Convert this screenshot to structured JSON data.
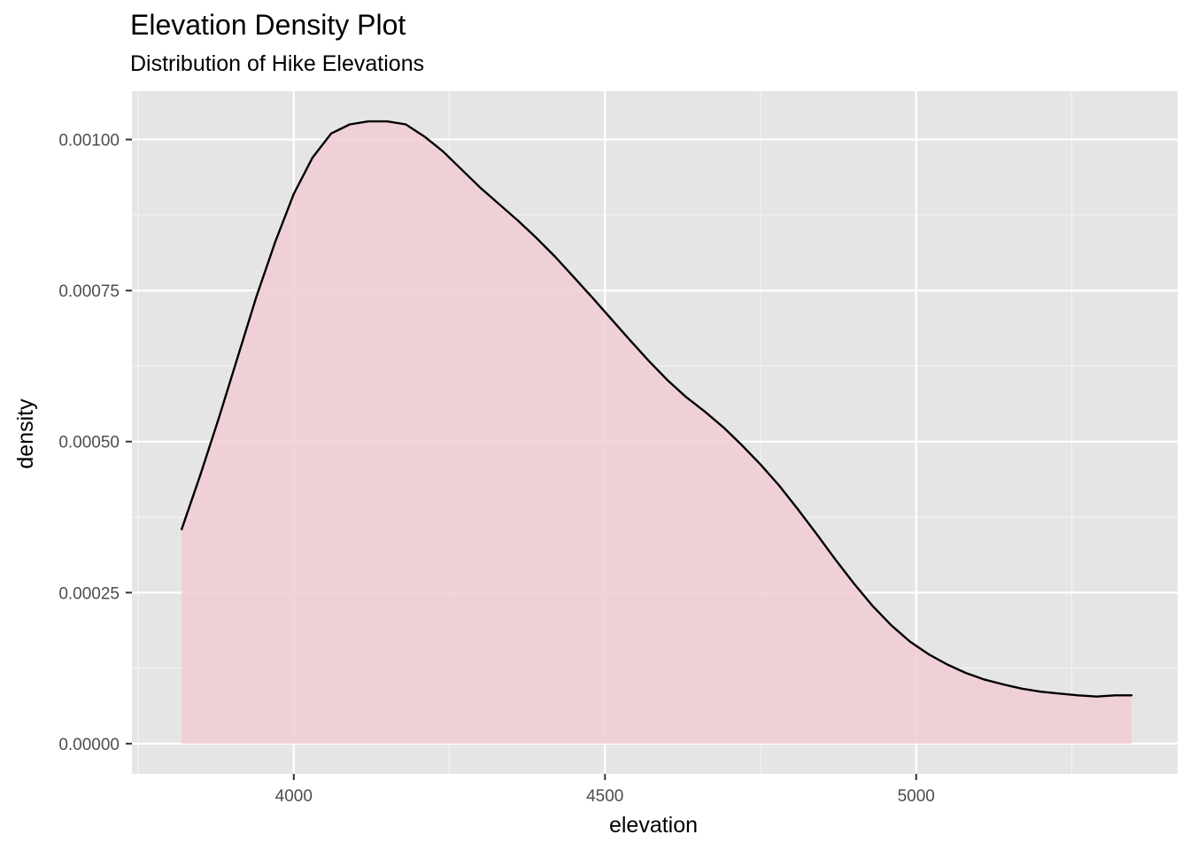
{
  "chart_data": {
    "type": "area",
    "title": "Elevation Density Plot",
    "subtitle": "Distribution of Hike Elevations",
    "xlabel": "elevation",
    "ylabel": "density",
    "xlim": [
      3740,
      5420
    ],
    "ylim": [
      -5e-05,
      0.00108
    ],
    "x_ticks": [
      4000,
      4500,
      5000
    ],
    "x_tick_labels": [
      "4000",
      "4500",
      "5000"
    ],
    "x_minor": [
      3750,
      4250,
      4750,
      5250
    ],
    "y_ticks": [
      0,
      0.00025,
      0.0005,
      0.00075,
      0.001
    ],
    "y_tick_labels": [
      "0.00000",
      "0.00025",
      "0.00050",
      "0.00075",
      "0.00100"
    ],
    "y_minor": [
      0.000125,
      0.000375,
      0.000625,
      0.000875
    ],
    "grid": true,
    "fill_color": "#f2ccd5",
    "line_color": "#000000",
    "panel_color": "#e5e5e5",
    "series": [
      {
        "x": [
          3820,
          3850,
          3880,
          3910,
          3940,
          3970,
          4000,
          4030,
          4060,
          4090,
          4120,
          4150,
          4180,
          4210,
          4240,
          4270,
          4300,
          4330,
          4360,
          4390,
          4420,
          4450,
          4480,
          4510,
          4540,
          4570,
          4600,
          4630,
          4660,
          4690,
          4720,
          4750,
          4780,
          4810,
          4840,
          4870,
          4900,
          4930,
          4960,
          4990,
          5020,
          5050,
          5080,
          5110,
          5140,
          5170,
          5200,
          5230,
          5260,
          5290,
          5320,
          5346
        ],
        "y": [
          0.000355,
          0.000445,
          0.00054,
          0.00064,
          0.00074,
          0.00083,
          0.00091,
          0.00097,
          0.00101,
          0.001025,
          0.00103,
          0.00103,
          0.001025,
          0.001005,
          0.00098,
          0.00095,
          0.00092,
          0.000893,
          0.000866,
          0.000837,
          0.000806,
          0.000772,
          0.000738,
          0.000703,
          0.000668,
          0.000634,
          0.000602,
          0.000574,
          0.00055,
          0.000524,
          0.000494,
          0.000462,
          0.000427,
          0.000388,
          0.000347,
          0.000305,
          0.000265,
          0.000228,
          0.000196,
          0.000169,
          0.000148,
          0.000131,
          0.000117,
          0.000106,
          9.8e-05,
          9.1e-05,
          8.6e-05,
          8.3e-05,
          8e-05,
          7.8e-05,
          8e-05,
          8e-05
        ]
      }
    ]
  }
}
